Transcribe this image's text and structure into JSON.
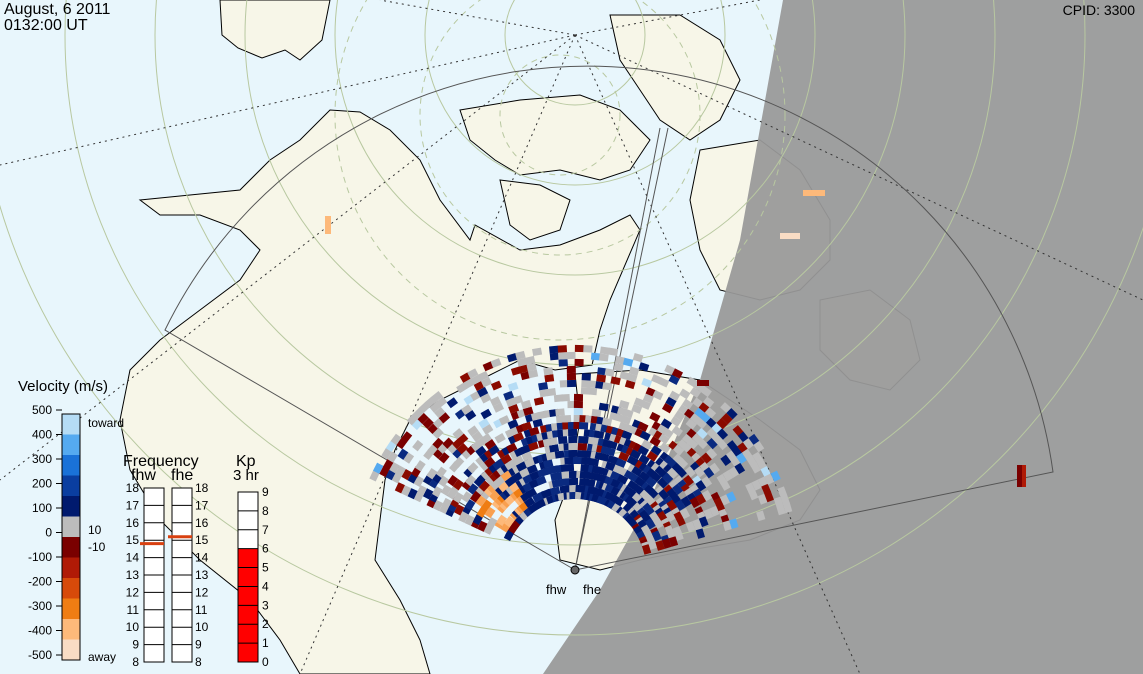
{
  "header": {
    "date": "August, 6 2011",
    "time": "0132:00 UT",
    "cpid": "CPID:  3300"
  },
  "radars": [
    {
      "code": "fhw"
    },
    {
      "code": "fhe"
    }
  ],
  "velocity_scale": {
    "title": "Velocity (m/s)",
    "ticks": [
      "500",
      "400",
      "300",
      "200",
      "100",
      "0",
      "-100",
      "-200",
      "-300",
      "-400",
      "-500"
    ],
    "top_label": "toward",
    "bottom_label": "away",
    "ground_scatter_labels": [
      "10",
      "-10"
    ],
    "colors": [
      "#f9dcc4",
      "#fdb97a",
      "#ef7d13",
      "#d74a0a",
      "#b01a06",
      "#7a0000",
      "#bcbcbc",
      "#001a6e",
      "#0a3ea0",
      "#1a72d8",
      "#55aaf0",
      "#b5dcf5"
    ]
  },
  "frequency_panel": {
    "title": "Frequency",
    "columns": [
      "fhw",
      "fhe"
    ],
    "ticks": [
      "18",
      "17",
      "16",
      "15",
      "14",
      "13",
      "12",
      "11",
      "10",
      "9",
      "8"
    ],
    "values_mhz": [
      14.8,
      15.2
    ],
    "marker_color": "#d84010"
  },
  "kp_panel": {
    "title": "Kp",
    "subtitle": "3 hr",
    "ticks": [
      "9",
      "8",
      "7",
      "6",
      "5",
      "4",
      "3",
      "2",
      "1",
      "0"
    ],
    "value": 6,
    "fill_color": "#ff0000"
  },
  "colors": {
    "ocean": "#e8f6fc",
    "land": "#f7f6e8",
    "night": "#999999",
    "ground_scatter": "#bcbcbc"
  }
}
